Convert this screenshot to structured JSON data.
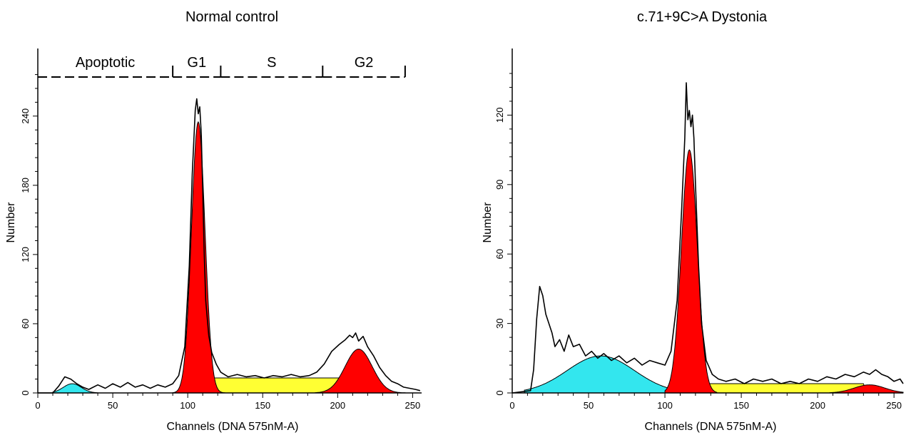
{
  "colors": {
    "apoptotic": "#33e6ee",
    "g1": "#ff0000",
    "s": "#ffff33",
    "g2": "#ff0000",
    "trace": "#000000"
  },
  "chart_data": [
    {
      "type": "area",
      "title": "Normal control",
      "xlabel": "Channels (DNA 575nM-A)",
      "ylabel": "Number",
      "xlim": [
        0,
        256
      ],
      "ylim": [
        0,
        285
      ],
      "xticks": [
        "0",
        "50",
        "100",
        "150",
        "200",
        "250"
      ],
      "yticks": [
        "0",
        "60",
        "120",
        "180",
        "240"
      ],
      "grid": false,
      "gates": [
        {
          "label": "Apoptotic",
          "start": 0,
          "end": 90
        },
        {
          "label": "G1",
          "start": 90,
          "end": 122
        },
        {
          "label": "S",
          "start": 122,
          "end": 190
        },
        {
          "label": "G2",
          "start": 190,
          "end": 245
        }
      ],
      "series": [
        {
          "component": "apoptotic",
          "kind": "gaussian",
          "center": 23,
          "height": 8,
          "sigma": 6,
          "range": [
            10,
            40
          ]
        },
        {
          "component": "g1",
          "kind": "gaussian",
          "center": 107,
          "height": 235,
          "sigma": 4.5,
          "range": [
            90,
            125
          ]
        },
        {
          "component": "s",
          "kind": "plateau",
          "start": 113,
          "end": 214,
          "height": 13
        },
        {
          "component": "g2",
          "kind": "gaussian",
          "center": 214,
          "height": 38,
          "sigma": 9,
          "range": [
            185,
            245
          ]
        }
      ],
      "histogram": [
        [
          0,
          0
        ],
        [
          10,
          0
        ],
        [
          14,
          6
        ],
        [
          18,
          14
        ],
        [
          22,
          12
        ],
        [
          26,
          8
        ],
        [
          30,
          5
        ],
        [
          34,
          3
        ],
        [
          40,
          7
        ],
        [
          45,
          4
        ],
        [
          50,
          8
        ],
        [
          55,
          5
        ],
        [
          60,
          9
        ],
        [
          65,
          5
        ],
        [
          70,
          7
        ],
        [
          75,
          4
        ],
        [
          80,
          7
        ],
        [
          85,
          5
        ],
        [
          90,
          8
        ],
        [
          94,
          15
        ],
        [
          98,
          40
        ],
        [
          101,
          110
        ],
        [
          103,
          190
        ],
        [
          105,
          245
        ],
        [
          106,
          255
        ],
        [
          107,
          242
        ],
        [
          108,
          248
        ],
        [
          109,
          225
        ],
        [
          110,
          175
        ],
        [
          111,
          120
        ],
        [
          112,
          80
        ],
        [
          114,
          50
        ],
        [
          116,
          35
        ],
        [
          119,
          25
        ],
        [
          122,
          18
        ],
        [
          127,
          14
        ],
        [
          133,
          16
        ],
        [
          139,
          14
        ],
        [
          145,
          15
        ],
        [
          151,
          13
        ],
        [
          157,
          15
        ],
        [
          163,
          14
        ],
        [
          169,
          16
        ],
        [
          175,
          14
        ],
        [
          181,
          15
        ],
        [
          186,
          18
        ],
        [
          191,
          25
        ],
        [
          196,
          36
        ],
        [
          201,
          42
        ],
        [
          205,
          46
        ],
        [
          208,
          50
        ],
        [
          210,
          48
        ],
        [
          212,
          52
        ],
        [
          214,
          45
        ],
        [
          217,
          49
        ],
        [
          220,
          40
        ],
        [
          224,
          32
        ],
        [
          228,
          22
        ],
        [
          232,
          15
        ],
        [
          236,
          10
        ],
        [
          240,
          8
        ],
        [
          244,
          5
        ],
        [
          248,
          4
        ],
        [
          252,
          3
        ],
        [
          255,
          2
        ]
      ]
    },
    {
      "type": "area",
      "title": "c.71+9C>A Dystonia",
      "xlabel": "Channels (DNA 575nM-A)",
      "ylabel": "Number",
      "xlim": [
        0,
        256
      ],
      "ylim": [
        0,
        142
      ],
      "xticks": [
        "0",
        "50",
        "100",
        "150",
        "200",
        "250"
      ],
      "yticks": [
        "0",
        "30",
        "60",
        "90",
        "120"
      ],
      "grid": false,
      "gates": [],
      "series": [
        {
          "component": "apoptotic",
          "kind": "gaussian",
          "center": 58,
          "height": 16,
          "sigma": 22,
          "range": [
            8,
            102
          ]
        },
        {
          "component": "g1",
          "kind": "gaussian",
          "center": 116,
          "height": 105,
          "sigma": 5.2,
          "range": [
            100,
            134
          ]
        },
        {
          "component": "s",
          "kind": "plateau",
          "start": 124,
          "end": 232,
          "height": 4
        },
        {
          "component": "g2",
          "kind": "gaussian",
          "center": 234,
          "height": 3.5,
          "sigma": 10,
          "range": [
            208,
            256
          ]
        }
      ],
      "histogram": [
        [
          0,
          0
        ],
        [
          12,
          1
        ],
        [
          14,
          10
        ],
        [
          16,
          32
        ],
        [
          18,
          46
        ],
        [
          20,
          42
        ],
        [
          22,
          34
        ],
        [
          24,
          30
        ],
        [
          26,
          26
        ],
        [
          28,
          20
        ],
        [
          31,
          23
        ],
        [
          34,
          18
        ],
        [
          37,
          25
        ],
        [
          40,
          20
        ],
        [
          44,
          21
        ],
        [
          48,
          16
        ],
        [
          52,
          18
        ],
        [
          56,
          15
        ],
        [
          60,
          17
        ],
        [
          65,
          14
        ],
        [
          70,
          16
        ],
        [
          75,
          13
        ],
        [
          80,
          15
        ],
        [
          85,
          12
        ],
        [
          90,
          14
        ],
        [
          95,
          13
        ],
        [
          100,
          12
        ],
        [
          104,
          18
        ],
        [
          108,
          40
        ],
        [
          111,
          80
        ],
        [
          113,
          110
        ],
        [
          114,
          134
        ],
        [
          115,
          118
        ],
        [
          116,
          122
        ],
        [
          117,
          115
        ],
        [
          118,
          120
        ],
        [
          119,
          110
        ],
        [
          120,
          90
        ],
        [
          122,
          55
        ],
        [
          124,
          30
        ],
        [
          127,
          14
        ],
        [
          131,
          8
        ],
        [
          135,
          6
        ],
        [
          140,
          5
        ],
        [
          146,
          6
        ],
        [
          152,
          4
        ],
        [
          158,
          6
        ],
        [
          164,
          5
        ],
        [
          170,
          6
        ],
        [
          176,
          4
        ],
        [
          182,
          5
        ],
        [
          188,
          4
        ],
        [
          194,
          6
        ],
        [
          200,
          5
        ],
        [
          206,
          7
        ],
        [
          212,
          6
        ],
        [
          218,
          8
        ],
        [
          224,
          7
        ],
        [
          230,
          9
        ],
        [
          234,
          8
        ],
        [
          238,
          10
        ],
        [
          242,
          8
        ],
        [
          246,
          7
        ],
        [
          250,
          5
        ],
        [
          254,
          6
        ],
        [
          256,
          4
        ]
      ]
    }
  ]
}
